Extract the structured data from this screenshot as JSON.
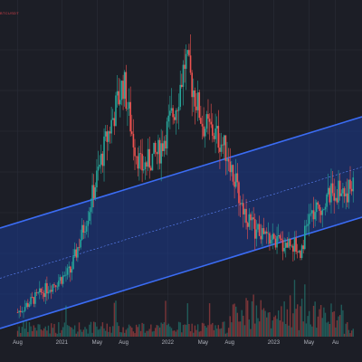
{
  "corner_label": "BTCUSDT",
  "colors": {
    "background": "#1c1e26",
    "grid": "#2b2e38",
    "candle_up": "#26a69a",
    "candle_down": "#ef5350",
    "channel_line": "#3b6cf4",
    "channel_fill": "#1c3a8f",
    "midline": "#5f86ff",
    "tick_text": "#b2b5be"
  },
  "chart_data": {
    "type": "candlestick",
    "title": "",
    "xlabel": "",
    "ylabel": "",
    "grid": true,
    "x_tick_labels": [
      "Aug",
      "2021",
      "May",
      "Aug",
      "2022",
      "May",
      "Aug",
      "2023",
      "May",
      "Au"
    ],
    "price_profile": [
      {
        "month": 0,
        "value": 0.05
      },
      {
        "month": 3,
        "value": 0.13
      },
      {
        "month": 6,
        "value": 0.2
      },
      {
        "month": 8,
        "value": 0.42
      },
      {
        "month": 9,
        "value": 0.55
      },
      {
        "month": 10,
        "value": 0.68
      },
      {
        "month": 12,
        "value": 0.9
      },
      {
        "month": 13,
        "value": 0.7
      },
      {
        "month": 14,
        "value": 0.58
      },
      {
        "month": 16,
        "value": 0.64
      },
      {
        "month": 18,
        "value": 0.82
      },
      {
        "month": 19,
        "value": 0.98
      },
      {
        "month": 20,
        "value": 0.86
      },
      {
        "month": 21,
        "value": 0.74
      },
      {
        "month": 22,
        "value": 0.72
      },
      {
        "month": 23,
        "value": 0.68
      },
      {
        "month": 24,
        "value": 0.62
      },
      {
        "month": 25,
        "value": 0.48
      },
      {
        "month": 26,
        "value": 0.4
      },
      {
        "month": 27,
        "value": 0.35
      },
      {
        "month": 28,
        "value": 0.33
      },
      {
        "month": 30,
        "value": 0.3
      },
      {
        "month": 31,
        "value": 0.31
      },
      {
        "month": 32,
        "value": 0.27
      },
      {
        "month": 33,
        "value": 0.4
      },
      {
        "month": 34,
        "value": 0.42
      },
      {
        "month": 35,
        "value": 0.47
      },
      {
        "month": 36,
        "value": 0.5
      },
      {
        "month": 37,
        "value": 0.49
      },
      {
        "month": 38,
        "value": 0.51
      }
    ],
    "channel": {
      "upper": [
        {
          "month": 0,
          "value": 0.38
        },
        {
          "month": 38,
          "value": 0.76
        }
      ],
      "lower": [
        {
          "month": 0,
          "value": 0.01
        },
        {
          "month": 38,
          "value": 0.39
        }
      ]
    }
  }
}
